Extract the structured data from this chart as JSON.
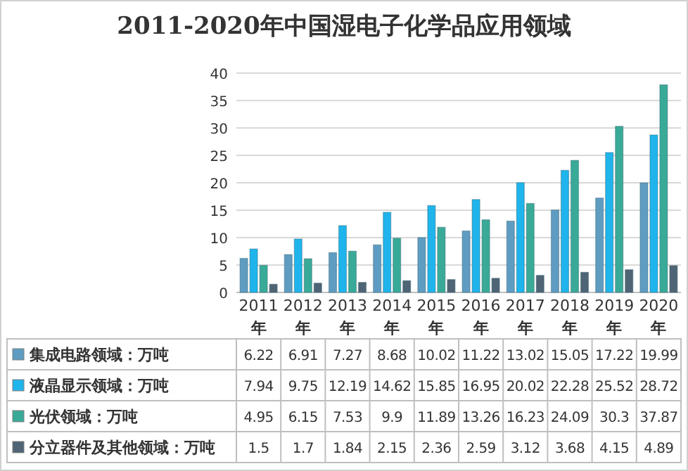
{
  "chart_data": {
    "type": "bar",
    "title": "2011-2020年中国湿电子化学品应用领域",
    "categories": [
      "2011\n年",
      "2012\n年",
      "2013\n年",
      "2014\n年",
      "2015\n年",
      "2016\n年",
      "2017\n年",
      "2018\n年",
      "2019\n年",
      "2020\n年"
    ],
    "series": [
      {
        "name": "集成电路领域：万吨",
        "color": "#5f9cc2",
        "values": [
          6.22,
          6.91,
          7.27,
          8.68,
          10.02,
          11.22,
          13.02,
          15.05,
          17.22,
          19.99
        ]
      },
      {
        "name": "液晶显示领域：万吨",
        "color": "#1fb4ec",
        "values": [
          7.94,
          9.75,
          12.19,
          14.62,
          15.85,
          16.95,
          20.02,
          22.28,
          25.52,
          28.72
        ]
      },
      {
        "name": "光伏领域：万吨",
        "color": "#3aaa98",
        "values": [
          4.95,
          6.15,
          7.53,
          9.9,
          11.89,
          13.26,
          16.23,
          24.09,
          30.3,
          37.87
        ]
      },
      {
        "name": "分立器件及其他领域：万吨",
        "color": "#4f6475",
        "values": [
          1.5,
          1.7,
          1.84,
          2.15,
          2.36,
          2.59,
          3.12,
          3.68,
          4.15,
          4.89
        ]
      }
    ],
    "ylim": [
      0,
      40
    ],
    "yticks": [
      0,
      5,
      10,
      15,
      20,
      25,
      30,
      35,
      40
    ],
    "grid": "y",
    "data_labels": true,
    "legend": "bottom"
  }
}
